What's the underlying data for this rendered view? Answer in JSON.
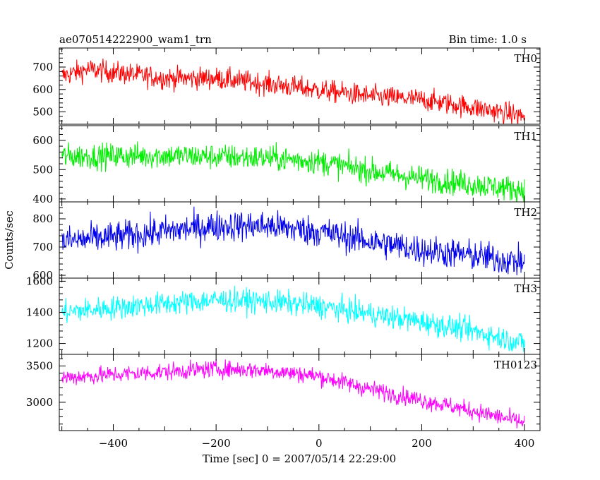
{
  "header": {
    "title": "ae070514222900_wam1_trn",
    "bin_time": "Bin time: 1.0 s"
  },
  "chart_data": {
    "type": "line",
    "xlabel": "Time [sec] 0 = 2007/05/14 22:29:00",
    "ylabel": "Counts/sec",
    "xlim": [
      -505,
      430
    ],
    "xticks": [
      -400,
      -200,
      0,
      200,
      400
    ],
    "grid": false,
    "panels": [
      {
        "name": "TH0",
        "color": "#ff0000",
        "ylim": [
          445,
          785
        ],
        "yticks": [
          500,
          600,
          700
        ],
        "trend": [
          [
            -500,
            660
          ],
          [
            -450,
            690
          ],
          [
            -300,
            650
          ],
          [
            -200,
            650
          ],
          [
            -100,
            625
          ],
          [
            100,
            570
          ],
          [
            200,
            555
          ],
          [
            300,
            520
          ],
          [
            400,
            480
          ]
        ],
        "noise": 45
      },
      {
        "name": "TH1",
        "color": "#00ee00",
        "ylim": [
          390,
          650
        ],
        "yticks": [
          400,
          500,
          600
        ],
        "trend": [
          [
            -500,
            545
          ],
          [
            -300,
            548
          ],
          [
            -100,
            540
          ],
          [
            0,
            528
          ],
          [
            100,
            495
          ],
          [
            200,
            470
          ],
          [
            300,
            450
          ],
          [
            400,
            430
          ]
        ],
        "noise": 40
      },
      {
        "name": "TH2",
        "color": "#0000ee",
        "ylim": [
          590,
          860
        ],
        "yticks": [
          600,
          700,
          800
        ],
        "trend": [
          [
            -500,
            720
          ],
          [
            -400,
            735
          ],
          [
            -200,
            775
          ],
          [
            -100,
            775
          ],
          [
            0,
            755
          ],
          [
            100,
            720
          ],
          [
            200,
            690
          ],
          [
            300,
            670
          ],
          [
            400,
            645
          ]
        ],
        "noise": 50
      },
      {
        "name": "TH3",
        "color": "#00ffff",
        "ylim": [
          1130,
          1620
        ],
        "yticks": [
          1200,
          1400,
          1600
        ],
        "trend": [
          [
            -500,
            1400
          ],
          [
            -400,
            1430
          ],
          [
            -200,
            1480
          ],
          [
            -100,
            1470
          ],
          [
            0,
            1440
          ],
          [
            100,
            1390
          ],
          [
            200,
            1340
          ],
          [
            300,
            1280
          ],
          [
            400,
            1200
          ]
        ],
        "noise": 70
      },
      {
        "name": "TH0123",
        "color": "#ff00ff",
        "ylim": [
          2610,
          3660
        ],
        "yticks": [
          3000,
          3500
        ],
        "trend": [
          [
            -500,
            3340
          ],
          [
            -400,
            3380
          ],
          [
            -200,
            3460
          ],
          [
            -100,
            3440
          ],
          [
            0,
            3360
          ],
          [
            100,
            3180
          ],
          [
            200,
            3030
          ],
          [
            300,
            2880
          ],
          [
            400,
            2720
          ]
        ],
        "noise": 110
      }
    ]
  }
}
